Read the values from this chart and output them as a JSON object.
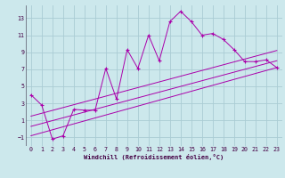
{
  "xlabel": "Windchill (Refroidissement éolien,°C)",
  "bg_color": "#cce8ec",
  "grid_color": "#aaccd4",
  "line_color": "#aa00aa",
  "xlim": [
    -0.5,
    23.5
  ],
  "ylim": [
    -2.0,
    14.5
  ],
  "xticks": [
    0,
    1,
    2,
    3,
    4,
    5,
    6,
    7,
    8,
    9,
    10,
    11,
    12,
    13,
    14,
    15,
    16,
    17,
    18,
    19,
    20,
    21,
    22,
    23
  ],
  "yticks": [
    -1,
    1,
    3,
    5,
    7,
    9,
    11,
    13
  ],
  "scatter_x": [
    0,
    1,
    2,
    3,
    4,
    5,
    6,
    7,
    8,
    9,
    10,
    11,
    12,
    13,
    14,
    15,
    16,
    17,
    18,
    19,
    20,
    21,
    22,
    23
  ],
  "scatter_y": [
    4.0,
    2.8,
    -1.2,
    -0.8,
    2.3,
    2.2,
    2.2,
    7.1,
    3.5,
    9.3,
    7.1,
    11.0,
    8.0,
    12.6,
    13.8,
    12.6,
    11.0,
    11.2,
    10.5,
    9.3,
    7.9,
    7.9,
    8.1,
    7.2
  ],
  "line1_x": [
    0,
    23
  ],
  "line1_y": [
    1.5,
    9.2
  ],
  "line2_x": [
    0,
    23
  ],
  "line2_y": [
    -0.8,
    7.2
  ],
  "line3_x": [
    0,
    23
  ],
  "line3_y": [
    0.3,
    8.0
  ]
}
